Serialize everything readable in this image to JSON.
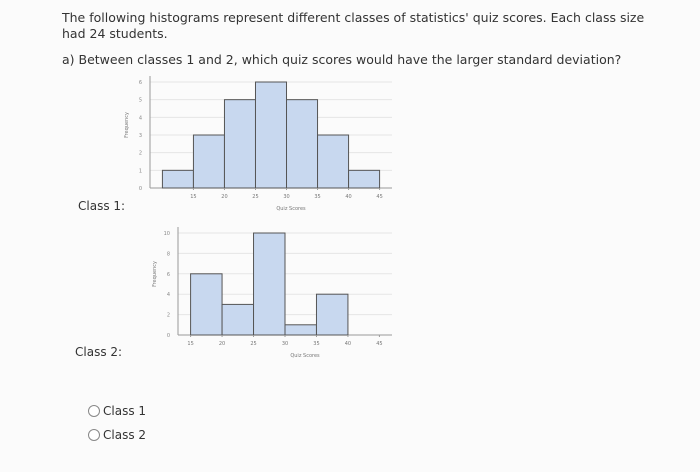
{
  "question": {
    "intro": "The following histograms represent different classes of statistics' quiz scores. Each class size had 24 students.",
    "prompt": "a) Between classes 1 and 2, which quiz scores would have the larger standard deviation?"
  },
  "chart_data": [
    {
      "type": "histogram",
      "label": "Class 1:",
      "xlabel": "Quiz Scores",
      "ylabel": "Frequency",
      "bins": [
        10,
        15,
        20,
        25,
        30,
        35,
        40,
        45
      ],
      "values": [
        1,
        3,
        5,
        6,
        5,
        3,
        1
      ],
      "xlim": [
        8,
        47
      ],
      "xticks": [
        15,
        20,
        25,
        30,
        35,
        40,
        45
      ],
      "ylim": [
        0,
        6
      ],
      "yticks": [
        0,
        1,
        2,
        3,
        4,
        5,
        6
      ],
      "color": "#c8d8ef",
      "grid": true
    },
    {
      "type": "histogram",
      "label": "Class 2:",
      "xlabel": "Quiz Scores",
      "ylabel": "Frequency",
      "bins": [
        15,
        20,
        25,
        30,
        35,
        40
      ],
      "values": [
        6,
        3,
        10,
        1,
        4
      ],
      "xlim": [
        13,
        47
      ],
      "xticks": [
        15,
        20,
        25,
        30,
        35,
        40,
        45
      ],
      "ylim": [
        0,
        10
      ],
      "yticks": [
        0,
        2,
        4,
        6,
        8,
        10
      ],
      "color": "#c8d8ef",
      "grid": true
    }
  ],
  "options": [
    "Class 1",
    "Class 2"
  ]
}
